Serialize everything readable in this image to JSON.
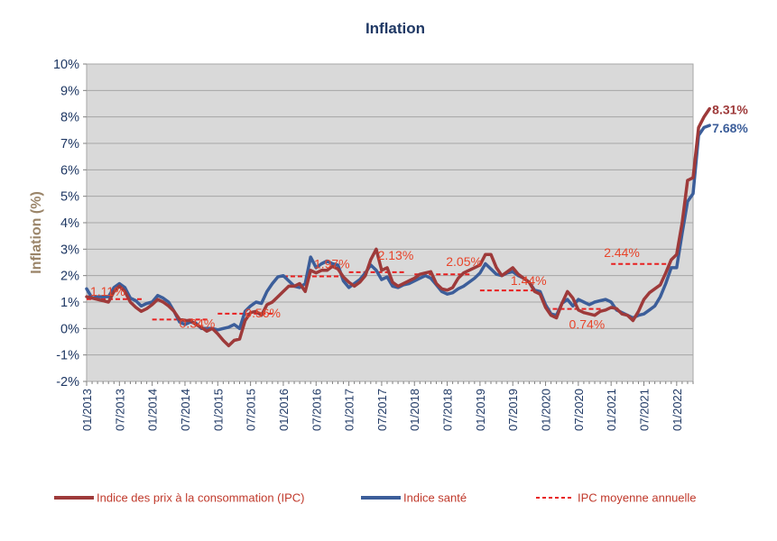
{
  "chart_data": {
    "type": "line",
    "title": "Inflation",
    "ylabel": "Inflation (%)",
    "ylim": [
      -2,
      10
    ],
    "y_ticks": [
      "-2%",
      "-1%",
      "0%",
      "1%",
      "2%",
      "3%",
      "4%",
      "5%",
      "6%",
      "7%",
      "8%",
      "9%",
      "10%"
    ],
    "x_tick_labels": [
      "01/2013",
      "07/2013",
      "01/2014",
      "07/2014",
      "01/2015",
      "07/2015",
      "01/2016",
      "07/2016",
      "01/2017",
      "07/2017",
      "01/2018",
      "07/2018",
      "01/2019",
      "07/2019",
      "01/2020",
      "07/2020",
      "01/2021",
      "07/2021",
      "01/2022"
    ],
    "x_range": [
      "01/2013",
      "04/2022"
    ],
    "grid": "horizontal",
    "plot_background": "#d9d9d9",
    "legend_position": "bottom",
    "series": [
      {
        "name": "Indice des prix à la consommation (IPC)",
        "color": "#9e3a3a",
        "style": "solid",
        "end_label": "8.31%",
        "points": [
          [
            "01/2013",
            1.2
          ],
          [
            "03/2013",
            1.1
          ],
          [
            "05/2013",
            1.0
          ],
          [
            "06/2013",
            1.4
          ],
          [
            "07/2013",
            1.6
          ],
          [
            "08/2013",
            1.4
          ],
          [
            "09/2013",
            1.0
          ],
          [
            "10/2013",
            0.8
          ],
          [
            "11/2013",
            0.65
          ],
          [
            "12/2013",
            0.75
          ],
          [
            "01/2014",
            0.9
          ],
          [
            "02/2014",
            1.1
          ],
          [
            "03/2014",
            1.0
          ],
          [
            "04/2014",
            0.85
          ],
          [
            "05/2014",
            0.65
          ],
          [
            "06/2014",
            0.35
          ],
          [
            "07/2014",
            0.3
          ],
          [
            "08/2014",
            0.3
          ],
          [
            "09/2014",
            0.15
          ],
          [
            "10/2014",
            0.05
          ],
          [
            "11/2014",
            -0.1
          ],
          [
            "12/2014",
            0.0
          ],
          [
            "01/2015",
            -0.2
          ],
          [
            "02/2015",
            -0.45
          ],
          [
            "03/2015",
            -0.65
          ],
          [
            "04/2015",
            -0.45
          ],
          [
            "05/2015",
            -0.4
          ],
          [
            "06/2015",
            0.3
          ],
          [
            "07/2015",
            0.6
          ],
          [
            "08/2015",
            0.65
          ],
          [
            "09/2015",
            0.5
          ],
          [
            "10/2015",
            0.9
          ],
          [
            "11/2015",
            1.0
          ],
          [
            "12/2015",
            1.2
          ],
          [
            "01/2016",
            1.4
          ],
          [
            "02/2016",
            1.6
          ],
          [
            "03/2016",
            1.6
          ],
          [
            "04/2016",
            1.7
          ],
          [
            "05/2016",
            1.4
          ],
          [
            "06/2016",
            2.2
          ],
          [
            "07/2016",
            2.1
          ],
          [
            "08/2016",
            2.2
          ],
          [
            "09/2016",
            2.2
          ],
          [
            "10/2016",
            2.35
          ],
          [
            "11/2016",
            2.25
          ],
          [
            "12/2016",
            1.95
          ],
          [
            "01/2017",
            1.75
          ],
          [
            "02/2017",
            1.6
          ],
          [
            "03/2017",
            1.75
          ],
          [
            "04/2017",
            2.0
          ],
          [
            "05/2017",
            2.6
          ],
          [
            "06/2017",
            3.0
          ],
          [
            "07/2017",
            2.2
          ],
          [
            "08/2017",
            2.3
          ],
          [
            "09/2017",
            1.75
          ],
          [
            "10/2017",
            1.6
          ],
          [
            "11/2017",
            1.7
          ],
          [
            "12/2017",
            1.8
          ],
          [
            "01/2018",
            1.9
          ],
          [
            "02/2018",
            2.05
          ],
          [
            "03/2018",
            2.1
          ],
          [
            "04/2018",
            2.15
          ],
          [
            "05/2018",
            1.7
          ],
          [
            "06/2018",
            1.5
          ],
          [
            "07/2018",
            1.45
          ],
          [
            "08/2018",
            1.55
          ],
          [
            "09/2018",
            1.9
          ],
          [
            "10/2018",
            2.1
          ],
          [
            "11/2018",
            2.2
          ],
          [
            "12/2018",
            2.3
          ],
          [
            "01/2019",
            2.4
          ],
          [
            "02/2019",
            2.8
          ],
          [
            "03/2019",
            2.8
          ],
          [
            "04/2019",
            2.3
          ],
          [
            "05/2019",
            2.0
          ],
          [
            "06/2019",
            2.15
          ],
          [
            "07/2019",
            2.3
          ],
          [
            "08/2019",
            2.05
          ],
          [
            "09/2019",
            1.9
          ],
          [
            "10/2019",
            1.75
          ],
          [
            "11/2019",
            1.4
          ],
          [
            "12/2019",
            1.3
          ],
          [
            "01/2020",
            0.8
          ],
          [
            "02/2020",
            0.5
          ],
          [
            "03/2020",
            0.4
          ],
          [
            "04/2020",
            0.95
          ],
          [
            "05/2020",
            1.4
          ],
          [
            "06/2020",
            1.15
          ],
          [
            "07/2020",
            0.7
          ],
          [
            "08/2020",
            0.6
          ],
          [
            "09/2020",
            0.55
          ],
          [
            "10/2020",
            0.5
          ],
          [
            "11/2020",
            0.65
          ],
          [
            "12/2020",
            0.7
          ],
          [
            "01/2021",
            0.8
          ],
          [
            "02/2021",
            0.75
          ],
          [
            "03/2021",
            0.55
          ],
          [
            "04/2021",
            0.5
          ],
          [
            "05/2021",
            0.3
          ],
          [
            "06/2021",
            0.65
          ],
          [
            "07/2021",
            1.1
          ],
          [
            "08/2021",
            1.35
          ],
          [
            "09/2021",
            1.5
          ],
          [
            "10/2021",
            1.65
          ],
          [
            "11/2021",
            2.1
          ],
          [
            "12/2021",
            2.6
          ],
          [
            "01/2022",
            2.8
          ],
          [
            "02/2022",
            4.0
          ],
          [
            "03/2022",
            5.6
          ],
          [
            "04/2022",
            5.7
          ],
          [
            "05/2022",
            7.6
          ],
          [
            "06/2022",
            8.0
          ],
          [
            "07/2022",
            8.31
          ]
        ]
      },
      {
        "name": "Indice santé",
        "color": "#3c5e9a",
        "style": "solid",
        "end_label": "7.68%",
        "points": [
          [
            "01/2013",
            1.5
          ],
          [
            "02/2013",
            1.15
          ],
          [
            "03/2013",
            1.2
          ],
          [
            "05/2013",
            1.2
          ],
          [
            "06/2013",
            1.55
          ],
          [
            "07/2013",
            1.7
          ],
          [
            "08/2013",
            1.55
          ],
          [
            "09/2013",
            1.15
          ],
          [
            "10/2013",
            1.05
          ],
          [
            "11/2013",
            0.85
          ],
          [
            "12/2013",
            0.95
          ],
          [
            "01/2014",
            1.0
          ],
          [
            "02/2014",
            1.25
          ],
          [
            "03/2014",
            1.15
          ],
          [
            "04/2014",
            1.0
          ],
          [
            "05/2014",
            0.65
          ],
          [
            "06/2014",
            0.25
          ],
          [
            "07/2014",
            0.15
          ],
          [
            "08/2014",
            0.25
          ],
          [
            "09/2014",
            0.2
          ],
          [
            "10/2014",
            0.0
          ],
          [
            "11/2014",
            0.0
          ],
          [
            "12/2014",
            0.0
          ],
          [
            "01/2015",
            -0.05
          ],
          [
            "02/2015",
            0.0
          ],
          [
            "03/2015",
            0.05
          ],
          [
            "04/2015",
            0.15
          ],
          [
            "05/2015",
            0.0
          ],
          [
            "06/2015",
            0.65
          ],
          [
            "07/2015",
            0.85
          ],
          [
            "08/2015",
            1.0
          ],
          [
            "09/2015",
            0.95
          ],
          [
            "10/2015",
            1.4
          ],
          [
            "11/2015",
            1.7
          ],
          [
            "12/2015",
            1.95
          ],
          [
            "01/2016",
            2.0
          ],
          [
            "02/2016",
            1.8
          ],
          [
            "03/2016",
            1.6
          ],
          [
            "04/2016",
            1.55
          ],
          [
            "05/2016",
            1.7
          ],
          [
            "06/2016",
            2.7
          ],
          [
            "07/2016",
            2.3
          ],
          [
            "08/2016",
            2.45
          ],
          [
            "09/2016",
            2.55
          ],
          [
            "10/2016",
            2.45
          ],
          [
            "11/2016",
            2.4
          ],
          [
            "12/2016",
            1.8
          ],
          [
            "01/2017",
            1.55
          ],
          [
            "02/2017",
            1.7
          ],
          [
            "03/2017",
            1.85
          ],
          [
            "04/2017",
            2.1
          ],
          [
            "05/2017",
            2.4
          ],
          [
            "06/2017",
            2.2
          ],
          [
            "07/2017",
            1.85
          ],
          [
            "08/2017",
            1.95
          ],
          [
            "09/2017",
            1.6
          ],
          [
            "10/2017",
            1.55
          ],
          [
            "11/2017",
            1.65
          ],
          [
            "12/2017",
            1.7
          ],
          [
            "01/2018",
            1.8
          ],
          [
            "02/2018",
            1.9
          ],
          [
            "03/2018",
            2.0
          ],
          [
            "04/2018",
            1.9
          ],
          [
            "05/2018",
            1.65
          ],
          [
            "06/2018",
            1.4
          ],
          [
            "07/2018",
            1.3
          ],
          [
            "08/2018",
            1.35
          ],
          [
            "09/2018",
            1.5
          ],
          [
            "10/2018",
            1.6
          ],
          [
            "11/2018",
            1.75
          ],
          [
            "12/2018",
            1.9
          ],
          [
            "01/2019",
            2.1
          ],
          [
            "02/2019",
            2.45
          ],
          [
            "03/2019",
            2.25
          ],
          [
            "04/2019",
            2.05
          ],
          [
            "05/2019",
            2.0
          ],
          [
            "06/2019",
            2.1
          ],
          [
            "07/2019",
            2.15
          ],
          [
            "08/2019",
            2.0
          ],
          [
            "09/2019",
            1.9
          ],
          [
            "10/2019",
            1.75
          ],
          [
            "11/2019",
            1.45
          ],
          [
            "12/2019",
            1.4
          ],
          [
            "01/2020",
            0.9
          ],
          [
            "02/2020",
            0.55
          ],
          [
            "03/2020",
            0.5
          ],
          [
            "04/2020",
            0.95
          ],
          [
            "05/2020",
            1.1
          ],
          [
            "06/2020",
            0.85
          ],
          [
            "07/2020",
            1.1
          ],
          [
            "08/2020",
            1.0
          ],
          [
            "09/2020",
            0.9
          ],
          [
            "10/2020",
            1.0
          ],
          [
            "11/2020",
            1.05
          ],
          [
            "12/2020",
            1.1
          ],
          [
            "01/2021",
            1.0
          ],
          [
            "02/2021",
            0.7
          ],
          [
            "03/2021",
            0.6
          ],
          [
            "04/2021",
            0.5
          ],
          [
            "05/2021",
            0.4
          ],
          [
            "06/2021",
            0.5
          ],
          [
            "07/2021",
            0.55
          ],
          [
            "08/2021",
            0.7
          ],
          [
            "09/2021",
            0.85
          ],
          [
            "10/2021",
            1.2
          ],
          [
            "11/2021",
            1.7
          ],
          [
            "12/2021",
            2.3
          ],
          [
            "01/2022",
            2.3
          ],
          [
            "02/2022",
            3.6
          ],
          [
            "03/2022",
            4.8
          ],
          [
            "04/2022",
            5.1
          ],
          [
            "05/2022",
            7.3
          ],
          [
            "06/2022",
            7.6
          ],
          [
            "07/2022",
            7.68
          ]
        ]
      },
      {
        "name": "IPC moyenne annuelle",
        "color": "#e82020",
        "style": "dashed",
        "annual_means": [
          {
            "year": "2013",
            "value": 1.11,
            "label": "1.11%"
          },
          {
            "year": "2014",
            "value": 0.34,
            "label": "0.34%"
          },
          {
            "year": "2015",
            "value": 0.56,
            "label": "0.56%"
          },
          {
            "year": "2016",
            "value": 1.97,
            "label": "1.97%"
          },
          {
            "year": "2017",
            "value": 2.13,
            "label": "2.13%"
          },
          {
            "year": "2018",
            "value": 2.05,
            "label": "2.05%"
          },
          {
            "year": "2019",
            "value": 1.44,
            "label": "1.44%"
          },
          {
            "year": "2020",
            "value": 0.74,
            "label": "0.74%"
          },
          {
            "year": "2021",
            "value": 2.44,
            "label": "2.44%"
          }
        ]
      }
    ]
  }
}
